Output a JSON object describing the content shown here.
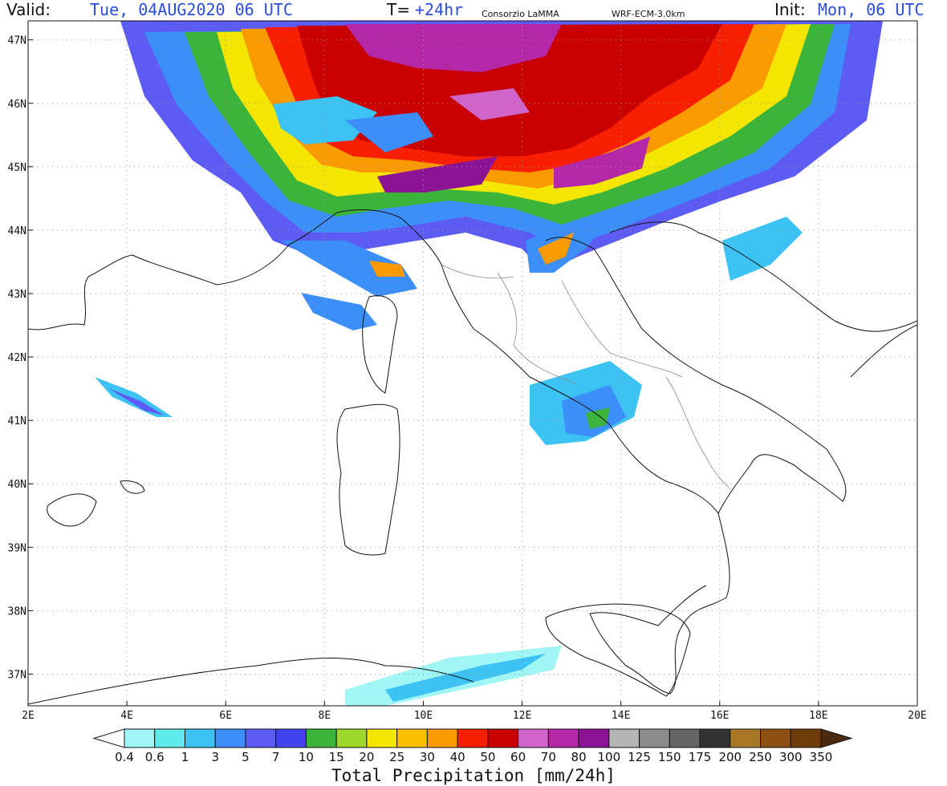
{
  "header": {
    "valid_label": "Valid:",
    "valid_value": "Tue, 04AUG2020   06 UTC",
    "t_label": "T=",
    "t_value": "+24hr",
    "source": "Consorzio LaMMA",
    "model": "WRF-ECM-3.0km",
    "init_label": "Init:",
    "init_value": "Mon, 06 UTC"
  },
  "map": {
    "lat_labels": [
      "47N",
      "46N",
      "45N",
      "44N",
      "43N",
      "42N",
      "41N",
      "40N",
      "39N",
      "38N",
      "37N"
    ],
    "lon_labels": [
      "2E",
      "4E",
      "6E",
      "8E",
      "10E",
      "12E",
      "14E",
      "16E",
      "18E",
      "20E"
    ],
    "lon_range": [
      2,
      20
    ],
    "lat_range": [
      36.5,
      47.3
    ],
    "grid": true,
    "coast_color": "#111111",
    "border_color": "#888888"
  },
  "colorbar": {
    "title": "Total Precipitation [mm/24h]",
    "levels": [
      "0.4",
      "0.6",
      "1",
      "3",
      "5",
      "7",
      "10",
      "15",
      "20",
      "25",
      "30",
      "40",
      "50",
      "60",
      "70",
      "80",
      "100",
      "125",
      "150",
      "175",
      "200",
      "250",
      "300",
      "350"
    ],
    "colors": [
      "#ffffff",
      "#a0f5f5",
      "#60ebeb",
      "#3cc2f3",
      "#3c8ef8",
      "#5c5cf4",
      "#4242ef",
      "#3cb43c",
      "#9ed62a",
      "#f4e600",
      "#f8c000",
      "#f89a00",
      "#f81e00",
      "#c80000",
      "#d064c8",
      "#b428a8",
      "#8c1494",
      "#b4b4b4",
      "#8c8c8c",
      "#646464",
      "#323232",
      "#a87828",
      "#8c5014",
      "#703c0a",
      "#4a2a0c"
    ]
  }
}
